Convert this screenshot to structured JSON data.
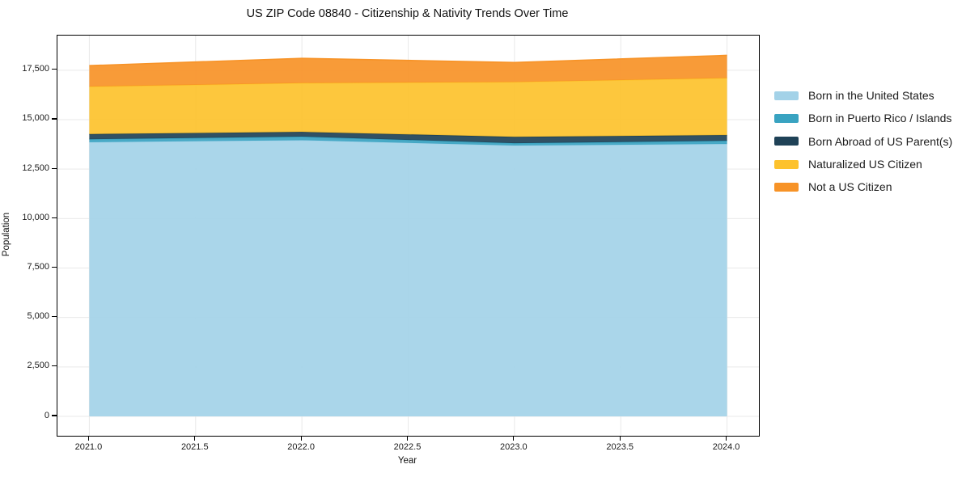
{
  "page": {
    "background": "#ffffff"
  },
  "chart_data": {
    "type": "area",
    "stacked": true,
    "title": "US ZIP Code 08840 - Citizenship & Nativity Trends Over Time",
    "xlabel": "Year",
    "ylabel": "Population",
    "x": [
      2021,
      2022,
      2023,
      2024
    ],
    "series": [
      {
        "name": "Born in the United States",
        "color": "#a3d2e8",
        "values": [
          13860,
          13960,
          13690,
          13770
        ]
      },
      {
        "name": "Born in Puerto Rico / Islands",
        "color": "#39a3c1",
        "values": [
          150,
          180,
          120,
          160
        ]
      },
      {
        "name": "Born Abroad of US Parent(s)",
        "color": "#1f4257",
        "values": [
          260,
          240,
          320,
          290
        ]
      },
      {
        "name": "Naturalized US Citizen",
        "color": "#fdc22d",
        "values": [
          2400,
          2470,
          2770,
          2880
        ]
      },
      {
        "name": "Not a US Citizen",
        "color": "#f79327",
        "values": [
          1060,
          1250,
          990,
          1150
        ]
      }
    ],
    "totals": [
      17730,
      18100,
      17890,
      18250
    ],
    "xlim": [
      2020.85,
      2024.15
    ],
    "ylim": [
      -980,
      19250
    ],
    "xticks": {
      "values": [
        2021,
        2021.5,
        2022,
        2022.5,
        2023,
        2023.5,
        2024
      ],
      "labels": [
        "2021.0",
        "2021.5",
        "2022.0",
        "2022.5",
        "2023.0",
        "2023.5",
        "2024.0"
      ]
    },
    "yticks": {
      "values": [
        0,
        2500,
        5000,
        7500,
        10000,
        12500,
        15000,
        17500
      ],
      "labels": [
        "0",
        "2,500",
        "5,000",
        "7,500",
        "10,000",
        "12,500",
        "15,000",
        "17,500"
      ]
    },
    "grid": true,
    "legend_position": "right of plot, frameless"
  },
  "style": {
    "grid_color": "#e9e9e9",
    "spine_color": "#000000",
    "text_color": "#1a1a1a",
    "area_fill_opacity": 0.92
  }
}
